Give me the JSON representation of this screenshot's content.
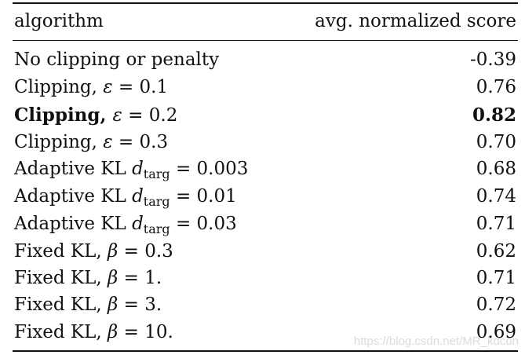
{
  "header": {
    "algorithm": "algorithm",
    "score": "avg. normalized score"
  },
  "rows": [
    {
      "label": "No clipping or penalty",
      "score": "-0.39"
    },
    {
      "label_prefix": "Clipping, ",
      "symbol": "ε",
      "label_suffix": " = 0.1",
      "score": "0.76"
    },
    {
      "label_prefix": "Clipping, ",
      "symbol": "ε",
      "label_suffix": " = 0.2",
      "score": "0.82"
    },
    {
      "label_prefix": "Clipping, ",
      "symbol": "ε",
      "label_suffix": " = 0.3",
      "score": "0.70"
    },
    {
      "label_prefix": "Adaptive KL ",
      "symbol": "d",
      "subscript": "targ",
      "label_suffix": " = 0.003",
      "score": "0.68"
    },
    {
      "label_prefix": "Adaptive KL ",
      "symbol": "d",
      "subscript": "targ",
      "label_suffix": " = 0.01",
      "score": "0.74"
    },
    {
      "label_prefix": "Adaptive KL ",
      "symbol": "d",
      "subscript": "targ",
      "label_suffix": " = 0.03",
      "score": "0.71"
    },
    {
      "label_prefix": "Fixed KL, ",
      "symbol": "β",
      "label_suffix": " = 0.3",
      "score": "0.62"
    },
    {
      "label_prefix": "Fixed KL, ",
      "symbol": "β",
      "label_suffix": " = 1.",
      "score": "0.71"
    },
    {
      "label_prefix": "Fixed KL, ",
      "symbol": "β",
      "label_suffix": " = 3.",
      "score": "0.72"
    },
    {
      "label_prefix": "Fixed KL, ",
      "symbol": "β",
      "label_suffix": " = 10.",
      "score": "0.69"
    }
  ],
  "watermark": "https://blog.csdn.net/MR_kdcon"
}
